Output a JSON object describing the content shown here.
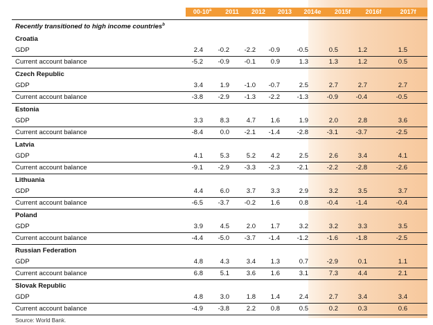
{
  "colors": {
    "header_bg": "#f39b36",
    "shade": "#f7c89c"
  },
  "header": {
    "columns": [
      {
        "label": "00-10",
        "sup": "a"
      },
      {
        "label": "2011"
      },
      {
        "label": "2012"
      },
      {
        "label": "2013"
      },
      {
        "label": "2014e"
      },
      {
        "label": "2015f"
      },
      {
        "label": "2016f"
      },
      {
        "label": "2017f"
      }
    ]
  },
  "section": {
    "title": "Recently transitioned to high income countries",
    "sup": "b"
  },
  "countries": [
    {
      "name": "Croatia",
      "rows": [
        {
          "label": "GDP",
          "values": [
            "2.4",
            "-0.2",
            "-2.2",
            "-0.9",
            "-0.5",
            "0.5",
            "1.2",
            "1.5"
          ]
        },
        {
          "label": "Current account balance",
          "values": [
            "-5.2",
            "-0.9",
            "-0.1",
            "0.9",
            "1.3",
            "1.3",
            "1.2",
            "0.5"
          ]
        }
      ]
    },
    {
      "name": "Czech Republic",
      "rows": [
        {
          "label": "GDP",
          "values": [
            "3.4",
            "1.9",
            "-1.0",
            "-0.7",
            "2.5",
            "2.7",
            "2.7",
            "2.7"
          ]
        },
        {
          "label": "Current account balance",
          "values": [
            "-3.8",
            "-2.9",
            "-1.3",
            "-2.2",
            "-1.3",
            "-0.9",
            "-0.4",
            "-0.5"
          ]
        }
      ]
    },
    {
      "name": "Estonia",
      "rows": [
        {
          "label": "GDP",
          "values": [
            "3.3",
            "8.3",
            "4.7",
            "1.6",
            "1.9",
            "2.0",
            "2.8",
            "3.6"
          ]
        },
        {
          "label": "Current account balance",
          "values": [
            "-8.4",
            "0.0",
            "-2.1",
            "-1.4",
            "-2.8",
            "-3.1",
            "-3.7",
            "-2.5"
          ]
        }
      ]
    },
    {
      "name": "Latvia",
      "rows": [
        {
          "label": "GDP",
          "values": [
            "4.1",
            "5.3",
            "5.2",
            "4.2",
            "2.5",
            "2.6",
            "3.4",
            "4.1"
          ]
        },
        {
          "label": "Current account balance",
          "values": [
            "-9.1",
            "-2.9",
            "-3.3",
            "-2.3",
            "-2.1",
            "-2.2",
            "-2.8",
            "-2.6"
          ]
        }
      ]
    },
    {
      "name": "Lithuania",
      "rows": [
        {
          "label": "GDP",
          "values": [
            "4.4",
            "6.0",
            "3.7",
            "3.3",
            "2.9",
            "3.2",
            "3.5",
            "3.7"
          ]
        },
        {
          "label": "Current account balance",
          "values": [
            "-6.5",
            "-3.7",
            "-0.2",
            "1.6",
            "0.8",
            "-0.4",
            "-1.4",
            "-0.4"
          ]
        }
      ]
    },
    {
      "name": "Poland",
      "rows": [
        {
          "label": "GDP",
          "values": [
            "3.9",
            "4.5",
            "2.0",
            "1.7",
            "3.2",
            "3.2",
            "3.3",
            "3.5"
          ]
        },
        {
          "label": "Current account balance",
          "values": [
            "-4.4",
            "-5.0",
            "-3.7",
            "-1.4",
            "-1.2",
            "-1.6",
            "-1.8",
            "-2.5"
          ]
        }
      ]
    },
    {
      "name": "Russian Federation",
      "rows": [
        {
          "label": "GDP",
          "values": [
            "4.8",
            "4.3",
            "3.4",
            "1.3",
            "0.7",
            "-2.9",
            "0.1",
            "1.1"
          ]
        },
        {
          "label": "Current account balance",
          "values": [
            "6.8",
            "5.1",
            "3.6",
            "1.6",
            "3.1",
            "7.3",
            "4.4",
            "2.1"
          ]
        }
      ]
    },
    {
      "name": "Slovak Republic",
      "rows": [
        {
          "label": "GDP",
          "values": [
            "4.8",
            "3.0",
            "1.8",
            "1.4",
            "2.4",
            "2.7",
            "3.4",
            "3.4"
          ]
        },
        {
          "label": "Current account balance",
          "values": [
            "-4.9",
            "-3.8",
            "2.2",
            "0.8",
            "0.5",
            "0.2",
            "0.3",
            "0.6"
          ]
        }
      ]
    }
  ],
  "source": "Source: World Bank."
}
